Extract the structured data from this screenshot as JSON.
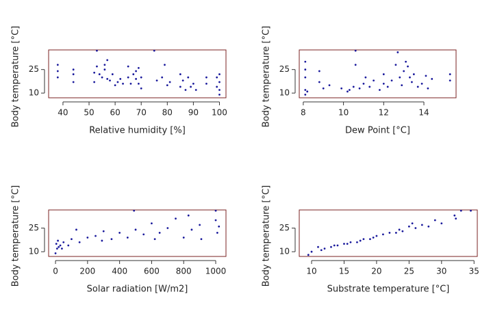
{
  "chart_data": [
    {
      "type": "scatter",
      "xlabel": "Relative humidity [%]",
      "ylabel": "Body temperature [°C]",
      "color": "#1a1a9c",
      "box_color": "#7a2222",
      "x": [
        38,
        38,
        38,
        44,
        44,
        44,
        52,
        52,
        53,
        53,
        54,
        55,
        56,
        56,
        57,
        57,
        58,
        59,
        60,
        61,
        62,
        63,
        65,
        65,
        66,
        67,
        68,
        68,
        69,
        69,
        70,
        70,
        75,
        76,
        78,
        79,
        80,
        81,
        85,
        85,
        86,
        87,
        88,
        89,
        90,
        91,
        95,
        95,
        99,
        99,
        100,
        100,
        100,
        100
      ],
      "values": [
        28,
        24,
        20,
        25,
        22,
        17,
        23,
        17,
        27,
        37,
        22,
        20,
        25,
        28,
        19,
        31,
        18,
        22,
        15,
        17,
        19,
        16,
        27,
        20,
        16,
        22,
        24,
        19,
        26,
        16,
        20,
        13,
        37,
        18,
        20,
        28,
        15,
        17,
        22,
        14,
        18,
        12,
        20,
        14,
        16,
        12,
        20,
        16,
        20,
        14,
        12,
        17,
        22,
        9
      ],
      "xlim": [
        34.5,
        102.5
      ],
      "ylim": [
        7,
        37.5
      ],
      "xticks": [
        40,
        50,
        60,
        70,
        80,
        90,
        100
      ],
      "yticks": [
        10,
        25
      ]
    },
    {
      "type": "scatter",
      "xlabel": "Dew Point [°C]",
      "ylabel": "Body temperature [°C]",
      "color": "#1a1a9c",
      "box_color": "#7a2222",
      "x": [
        8.1,
        8.1,
        8.1,
        8.1,
        8.1,
        8.2,
        8.8,
        8.8,
        9.0,
        9.3,
        9.9,
        10.2,
        10.3,
        10.5,
        10.6,
        10.6,
        10.8,
        11.0,
        11.1,
        11.3,
        11.5,
        11.8,
        12.0,
        12.0,
        12.2,
        12.4,
        12.6,
        12.7,
        12.8,
        12.9,
        13.0,
        13.1,
        13.2,
        13.3,
        13.4,
        13.5,
        13.7,
        13.9,
        14.1,
        14.2,
        14.4,
        15.3,
        15.3
      ],
      "values": [
        30,
        25,
        20,
        12,
        9,
        11,
        24,
        17,
        13,
        15,
        13,
        11,
        12,
        14,
        37,
        28,
        13,
        16,
        20,
        14,
        18,
        12,
        22,
        16,
        14,
        18,
        28,
        36,
        20,
        15,
        24,
        30,
        27,
        20,
        17,
        22,
        14,
        16,
        21,
        13,
        19,
        22,
        18
      ],
      "xlim": [
        7.8,
        15.6
      ],
      "ylim": [
        7,
        37.5
      ],
      "xticks": [
        8,
        10,
        12,
        14
      ],
      "yticks": [
        10,
        25
      ]
    },
    {
      "type": "scatter",
      "xlabel": "Solar radiation [W/m2]",
      "ylabel": "Body temperature [°C]",
      "color": "#1a1a9c",
      "box_color": "#7a2222",
      "x": [
        0,
        5,
        10,
        15,
        20,
        30,
        40,
        50,
        80,
        100,
        130,
        150,
        200,
        250,
        290,
        300,
        350,
        400,
        450,
        490,
        500,
        550,
        600,
        620,
        650,
        700,
        750,
        800,
        830,
        850,
        900,
        910,
        1000,
        1000,
        1010,
        1020
      ],
      "values": [
        9,
        15,
        12,
        17,
        13,
        14,
        12,
        16,
        14,
        18,
        24,
        16,
        19,
        20,
        17,
        23,
        18,
        22,
        19,
        36,
        24,
        21,
        28,
        18,
        22,
        25,
        31,
        19,
        33,
        24,
        27,
        18,
        36,
        30,
        22,
        26
      ],
      "xlim": [
        -43,
        1064
      ],
      "ylim": [
        7,
        36.5
      ],
      "xticks": [
        0,
        200,
        400,
        600,
        800,
        1000
      ],
      "yticks": [
        10,
        25
      ]
    },
    {
      "type": "scatter",
      "xlabel": "Substrate temperature [°C]",
      "ylabel": "Body temperature [°C]",
      "color": "#1a1a9c",
      "box_color": "#7a2222",
      "x": [
        9.5,
        10,
        11,
        11.5,
        12,
        13,
        13.5,
        14,
        15,
        15.5,
        16,
        17,
        17.5,
        18,
        19,
        19.5,
        20,
        21,
        22,
        23,
        23.5,
        24,
        25,
        25.5,
        26,
        27,
        28,
        29,
        30,
        32,
        32.2,
        33,
        34.5
      ],
      "values": [
        8,
        10,
        13,
        11,
        12,
        13,
        14,
        14,
        15,
        15,
        16,
        16,
        17,
        18,
        18,
        19,
        20,
        21,
        22,
        22,
        24,
        23,
        26,
        28,
        25,
        27,
        26,
        30,
        28,
        33,
        31,
        36,
        36
      ],
      "xlim": [
        8.1,
        35.5
      ],
      "ylim": [
        7,
        36.5
      ],
      "xticks": [
        10,
        15,
        20,
        25,
        30,
        35
      ],
      "yticks": [
        10,
        25
      ]
    }
  ]
}
